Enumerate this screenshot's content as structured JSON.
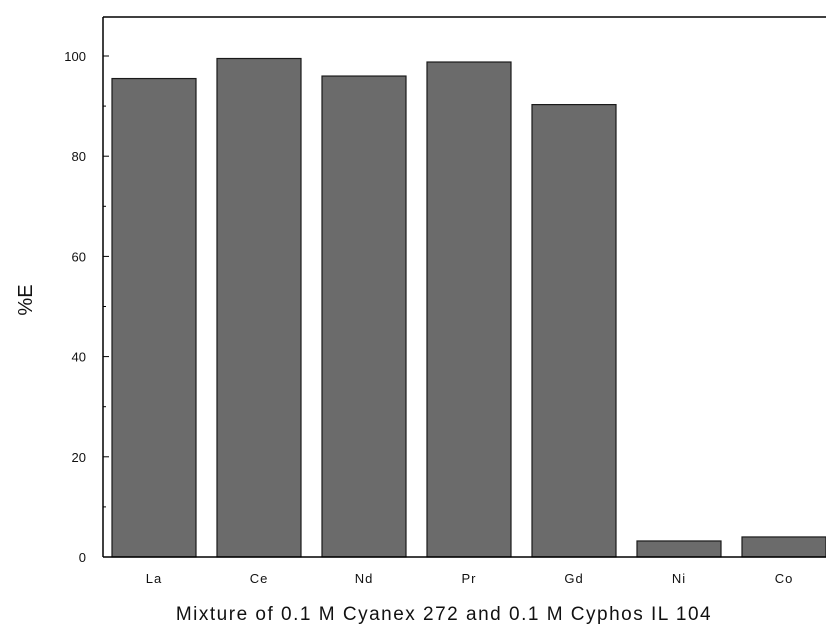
{
  "chart_data": {
    "type": "bar",
    "title": "",
    "xlabel": "Mixture of 0.1 M Cyanex 272 and 0.1 M Cyphos IL 104",
    "ylabel": "%E",
    "categories": [
      "La",
      "Ce",
      "Nd",
      "Pr",
      "Gd",
      "Ni",
      "Co"
    ],
    "values": [
      95.5,
      99.5,
      96,
      98.8,
      90.3,
      3.2,
      4
    ],
    "ylim": [
      0,
      108
    ],
    "yticks": [
      "0",
      "20",
      "40",
      "60",
      "80",
      "100"
    ],
    "grid": false,
    "legend": "none",
    "bar_color": "#6b6b6b",
    "bar_edge_color": "#1a1a1a"
  }
}
